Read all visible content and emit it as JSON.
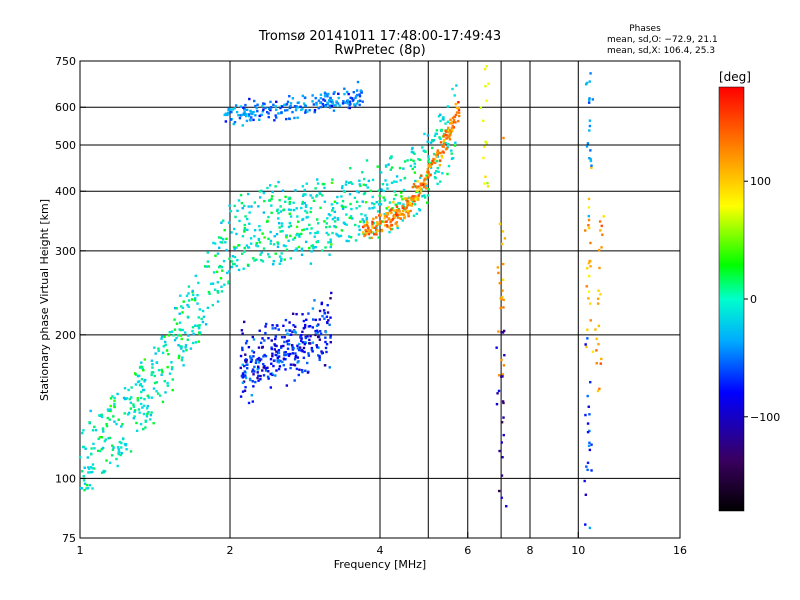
{
  "chart_data": {
    "type": "scatter",
    "title": "Tromsø 20141011 17:48:00-17:49:43",
    "subtitle": "RwPretec (8p)",
    "xlabel": "Frequency [MHz]",
    "ylabel": "Stationary phase Virtual Height [km]",
    "xscale": "log",
    "yscale": "log",
    "xlim": [
      1,
      16
    ],
    "ylim": [
      75,
      750
    ],
    "xticks": [
      1,
      2,
      4,
      6,
      8,
      10,
      16
    ],
    "xtick_labels": [
      "1",
      "2",
      "4",
      "6",
      "8",
      "10",
      "16"
    ],
    "x_gridlines": [
      2,
      4,
      5,
      6,
      7,
      8,
      10
    ],
    "yticks": [
      75,
      100,
      200,
      300,
      400,
      500,
      600,
      750
    ],
    "ytick_labels": [
      "75",
      "100",
      "200",
      "300",
      "400",
      "500",
      "600",
      "750"
    ],
    "y_gridlines": [
      100,
      200,
      300,
      400,
      500,
      600
    ],
    "grid": true,
    "phases": {
      "heading": "Phases",
      "line1": "mean, sd,O: −72.9, 21.1",
      "line2": "mean, sd,X: 106.4, 25.3"
    },
    "colorbar": {
      "label": "[deg]",
      "range": [
        -180,
        180
      ],
      "ticks": [
        100,
        0,
        -100
      ],
      "tick_labels": [
        "100",
        "0",
        "−100"
      ]
    },
    "series": [
      {
        "name": "O-trace 1 (bottom edge)",
        "x": [
          1.0,
          1.25,
          1.5,
          1.75,
          2.0,
          2.3,
          2.7,
          3.1,
          3.6,
          4.2,
          4.8,
          5.3,
          5.7
        ],
        "y": [
          92,
          112,
          148,
          200,
          265,
          282,
          288,
          298,
          315,
          330,
          360,
          410,
          480
        ],
        "phase": -10
      },
      {
        "name": "O-trace 2 (upper)",
        "x": [
          1.95,
          2.2,
          2.5,
          2.8,
          3.1,
          3.4,
          3.7
        ],
        "y": [
          575,
          585,
          595,
          605,
          615,
          625,
          640
        ],
        "phase": -70
      },
      {
        "name": "X-trace (orange)",
        "x": [
          3.7,
          4.0,
          4.3,
          4.6,
          4.9,
          5.2,
          5.5,
          5.8
        ],
        "y": [
          330,
          340,
          355,
          380,
          420,
          470,
          530,
          600
        ],
        "phase": 130
      },
      {
        "name": "E/F1 cluster",
        "x": [
          2.1,
          2.5,
          2.9,
          3.2
        ],
        "y": [
          170,
          185,
          195,
          205
        ],
        "phase": -95
      }
    ]
  }
}
